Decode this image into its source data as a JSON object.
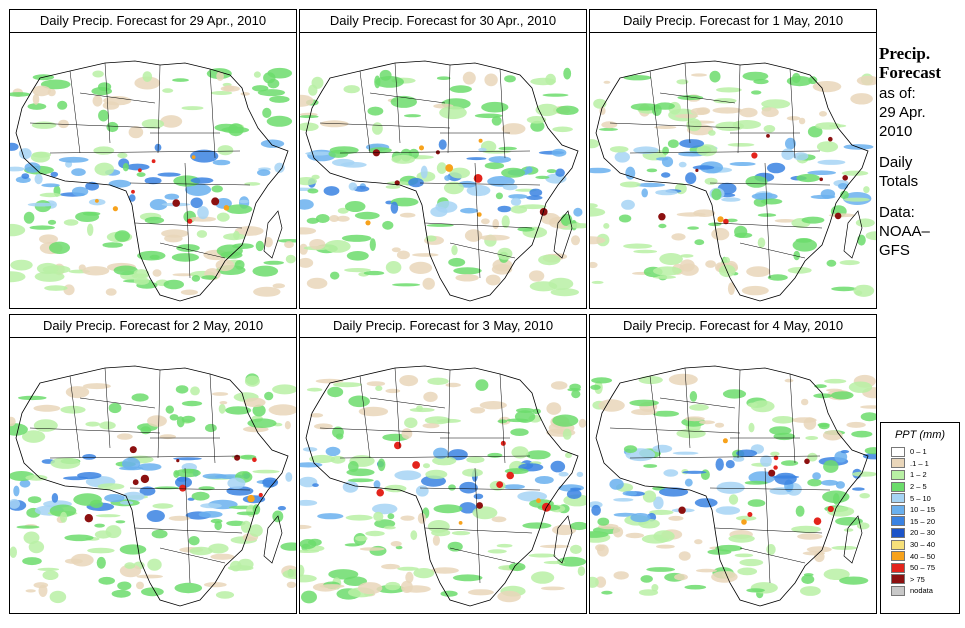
{
  "panels": [
    {
      "title": "Daily Precip. Forecast for  29 Apr., 2010"
    },
    {
      "title": "Daily Precip. Forecast for  30 Apr., 2010"
    },
    {
      "title": "Daily Precip. Forecast for  1 May, 2010"
    },
    {
      "title": "Daily Precip. Forecast for  2 May, 2010"
    },
    {
      "title": "Daily Precip. Forecast for  3 May, 2010"
    },
    {
      "title": "Daily Precip. Forecast for  4 May, 2010"
    }
  ],
  "info": {
    "title_line1": "Precip.",
    "title_line2": "Forecast",
    "asof_line1": "as of:",
    "asof_line2": "29 Apr.",
    "asof_line3": "2010",
    "totals_line1": "Daily",
    "totals_line2": "Totals",
    "data_line1": "Data:",
    "data_line2": "NOAA–",
    "data_line3": "GFS"
  },
  "legend": {
    "title": "PPT (mm)",
    "items": [
      {
        "label": "0 – 1",
        "color": "#ffffff"
      },
      {
        "label": ".1 – 1",
        "color": "#e9d6ba"
      },
      {
        "label": "1 – 2",
        "color": "#b8f0a4"
      },
      {
        "label": "2 – 5",
        "color": "#6cdc6c"
      },
      {
        "label": "5 – 10",
        "color": "#a6d4f4"
      },
      {
        "label": "10 – 15",
        "color": "#6ab0ee"
      },
      {
        "label": "15 – 20",
        "color": "#3a82e2"
      },
      {
        "label": "20 – 30",
        "color": "#1d54c8"
      },
      {
        "label": "30 – 40",
        "color": "#f6e07a"
      },
      {
        "label": "40 – 50",
        "color": "#f7a21c"
      },
      {
        "label": "50 – 75",
        "color": "#e3241c"
      },
      {
        "label": "> 75",
        "color": "#8c1010"
      },
      {
        "label": "nodata",
        "color": "#c8c8c8"
      }
    ]
  }
}
